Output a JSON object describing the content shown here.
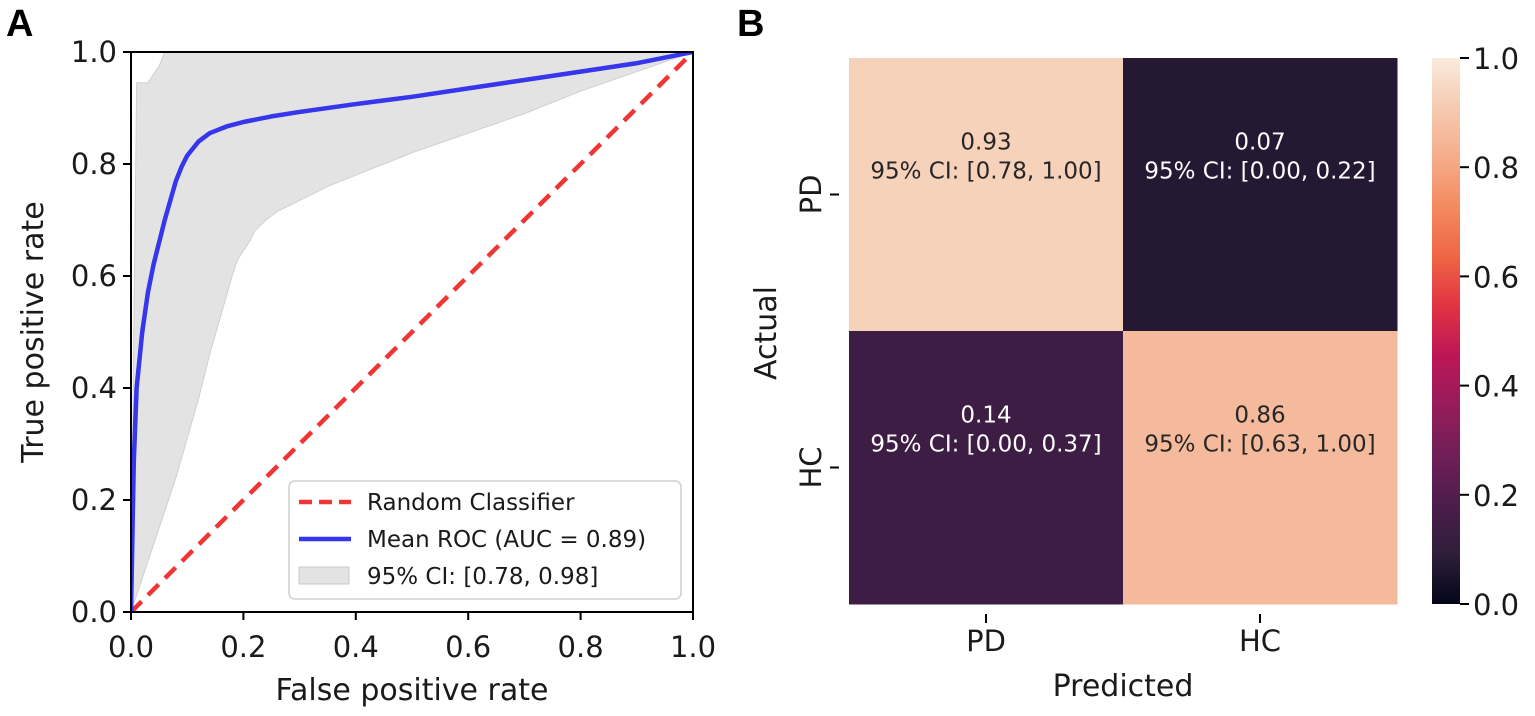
{
  "panels": {
    "a_label": "A",
    "b_label": "B"
  },
  "chart_data": [
    {
      "type": "line",
      "panel": "A",
      "title": "",
      "xlabel": "False positive rate",
      "ylabel": "True positive rate",
      "xlim": [
        0,
        1
      ],
      "ylim": [
        0,
        1
      ],
      "xticks": [
        "0.0",
        "0.2",
        "0.4",
        "0.6",
        "0.8",
        "1.0"
      ],
      "yticks": [
        "0.0",
        "0.2",
        "0.4",
        "0.6",
        "0.8",
        "1.0"
      ],
      "grid": false,
      "legend_position": "bottom-right",
      "legend": [
        "Random Classifier",
        "Mean ROC (AUC = 0.89)",
        "95% CI: [0.78, 0.98]"
      ],
      "series": [
        {
          "name": "Random Classifier",
          "style": "dashed",
          "color": "#ef3535",
          "x": [
            0,
            1
          ],
          "y": [
            0,
            1
          ]
        },
        {
          "name": "Mean ROC (AUC = 0.89)",
          "style": "solid",
          "color": "#3636ec",
          "x": [
            0,
            0.005,
            0.01,
            0.02,
            0.03,
            0.04,
            0.05,
            0.06,
            0.07,
            0.08,
            0.09,
            0.1,
            0.12,
            0.14,
            0.17,
            0.2,
            0.25,
            0.3,
            0.4,
            0.5,
            0.6,
            0.7,
            0.8,
            0.9,
            1.0
          ],
          "y": [
            0,
            0.27,
            0.4,
            0.5,
            0.57,
            0.62,
            0.66,
            0.7,
            0.735,
            0.77,
            0.795,
            0.815,
            0.84,
            0.855,
            0.867,
            0.875,
            0.885,
            0.893,
            0.907,
            0.92,
            0.935,
            0.95,
            0.965,
            0.98,
            1.0
          ]
        }
      ],
      "ci_band": {
        "name": "95% CI: [0.78, 0.98]",
        "color": "#e3e3e3",
        "upper": {
          "x": [
            0,
            0.005,
            0.01,
            0.01,
            0.03,
            0.04,
            0.05,
            0.06,
            1.0
          ],
          "y": [
            0,
            0.5,
            0.94,
            0.945,
            0.945,
            0.96,
            0.975,
            1.0,
            1.0
          ]
        },
        "lower": {
          "x": [
            0,
            0.02,
            0.04,
            0.06,
            0.08,
            0.1,
            0.12,
            0.14,
            0.16,
            0.18,
            0.19,
            0.2,
            0.21,
            0.22,
            0.24,
            0.26,
            0.28,
            0.3,
            0.35,
            0.4,
            0.5,
            0.6,
            0.7,
            0.8,
            0.9,
            1.0
          ],
          "y": [
            0,
            0.06,
            0.12,
            0.18,
            0.24,
            0.31,
            0.38,
            0.46,
            0.53,
            0.6,
            0.63,
            0.645,
            0.66,
            0.68,
            0.7,
            0.715,
            0.725,
            0.735,
            0.76,
            0.78,
            0.82,
            0.855,
            0.89,
            0.93,
            0.965,
            1.0
          ]
        }
      }
    },
    {
      "type": "heatmap",
      "panel": "B",
      "title": "",
      "xlabel": "Predicted",
      "ylabel": "Actual",
      "x_categories": [
        "PD",
        "HC"
      ],
      "y_categories": [
        "PD",
        "HC"
      ],
      "values": [
        [
          0.93,
          0.07
        ],
        [
          0.14,
          0.86
        ]
      ],
      "cell_labels": [
        [
          {
            "value": "0.93",
            "ci": "95% CI: [0.78, 1.00]"
          },
          {
            "value": "0.07",
            "ci": "95% CI: [0.00, 0.22]"
          }
        ],
        [
          {
            "value": "0.14",
            "ci": "95% CI: [0.00, 0.37]"
          },
          {
            "value": "0.86",
            "ci": "95% CI: [0.63, 1.00]"
          }
        ]
      ],
      "colorbar": {
        "range": [
          0,
          1
        ],
        "ticks": [
          "0.0",
          "0.2",
          "0.4",
          "0.6",
          "0.8",
          "1.0"
        ],
        "colormap": "rocket",
        "stops": [
          "#03051a",
          "#2e1e3b",
          "#4c1d4b",
          "#701f57",
          "#961c5b",
          "#bc1656",
          "#e13342",
          "#ef6645",
          "#f48a5f",
          "#f5ad8b",
          "#f6cab1",
          "#faebdd"
        ]
      }
    }
  ]
}
